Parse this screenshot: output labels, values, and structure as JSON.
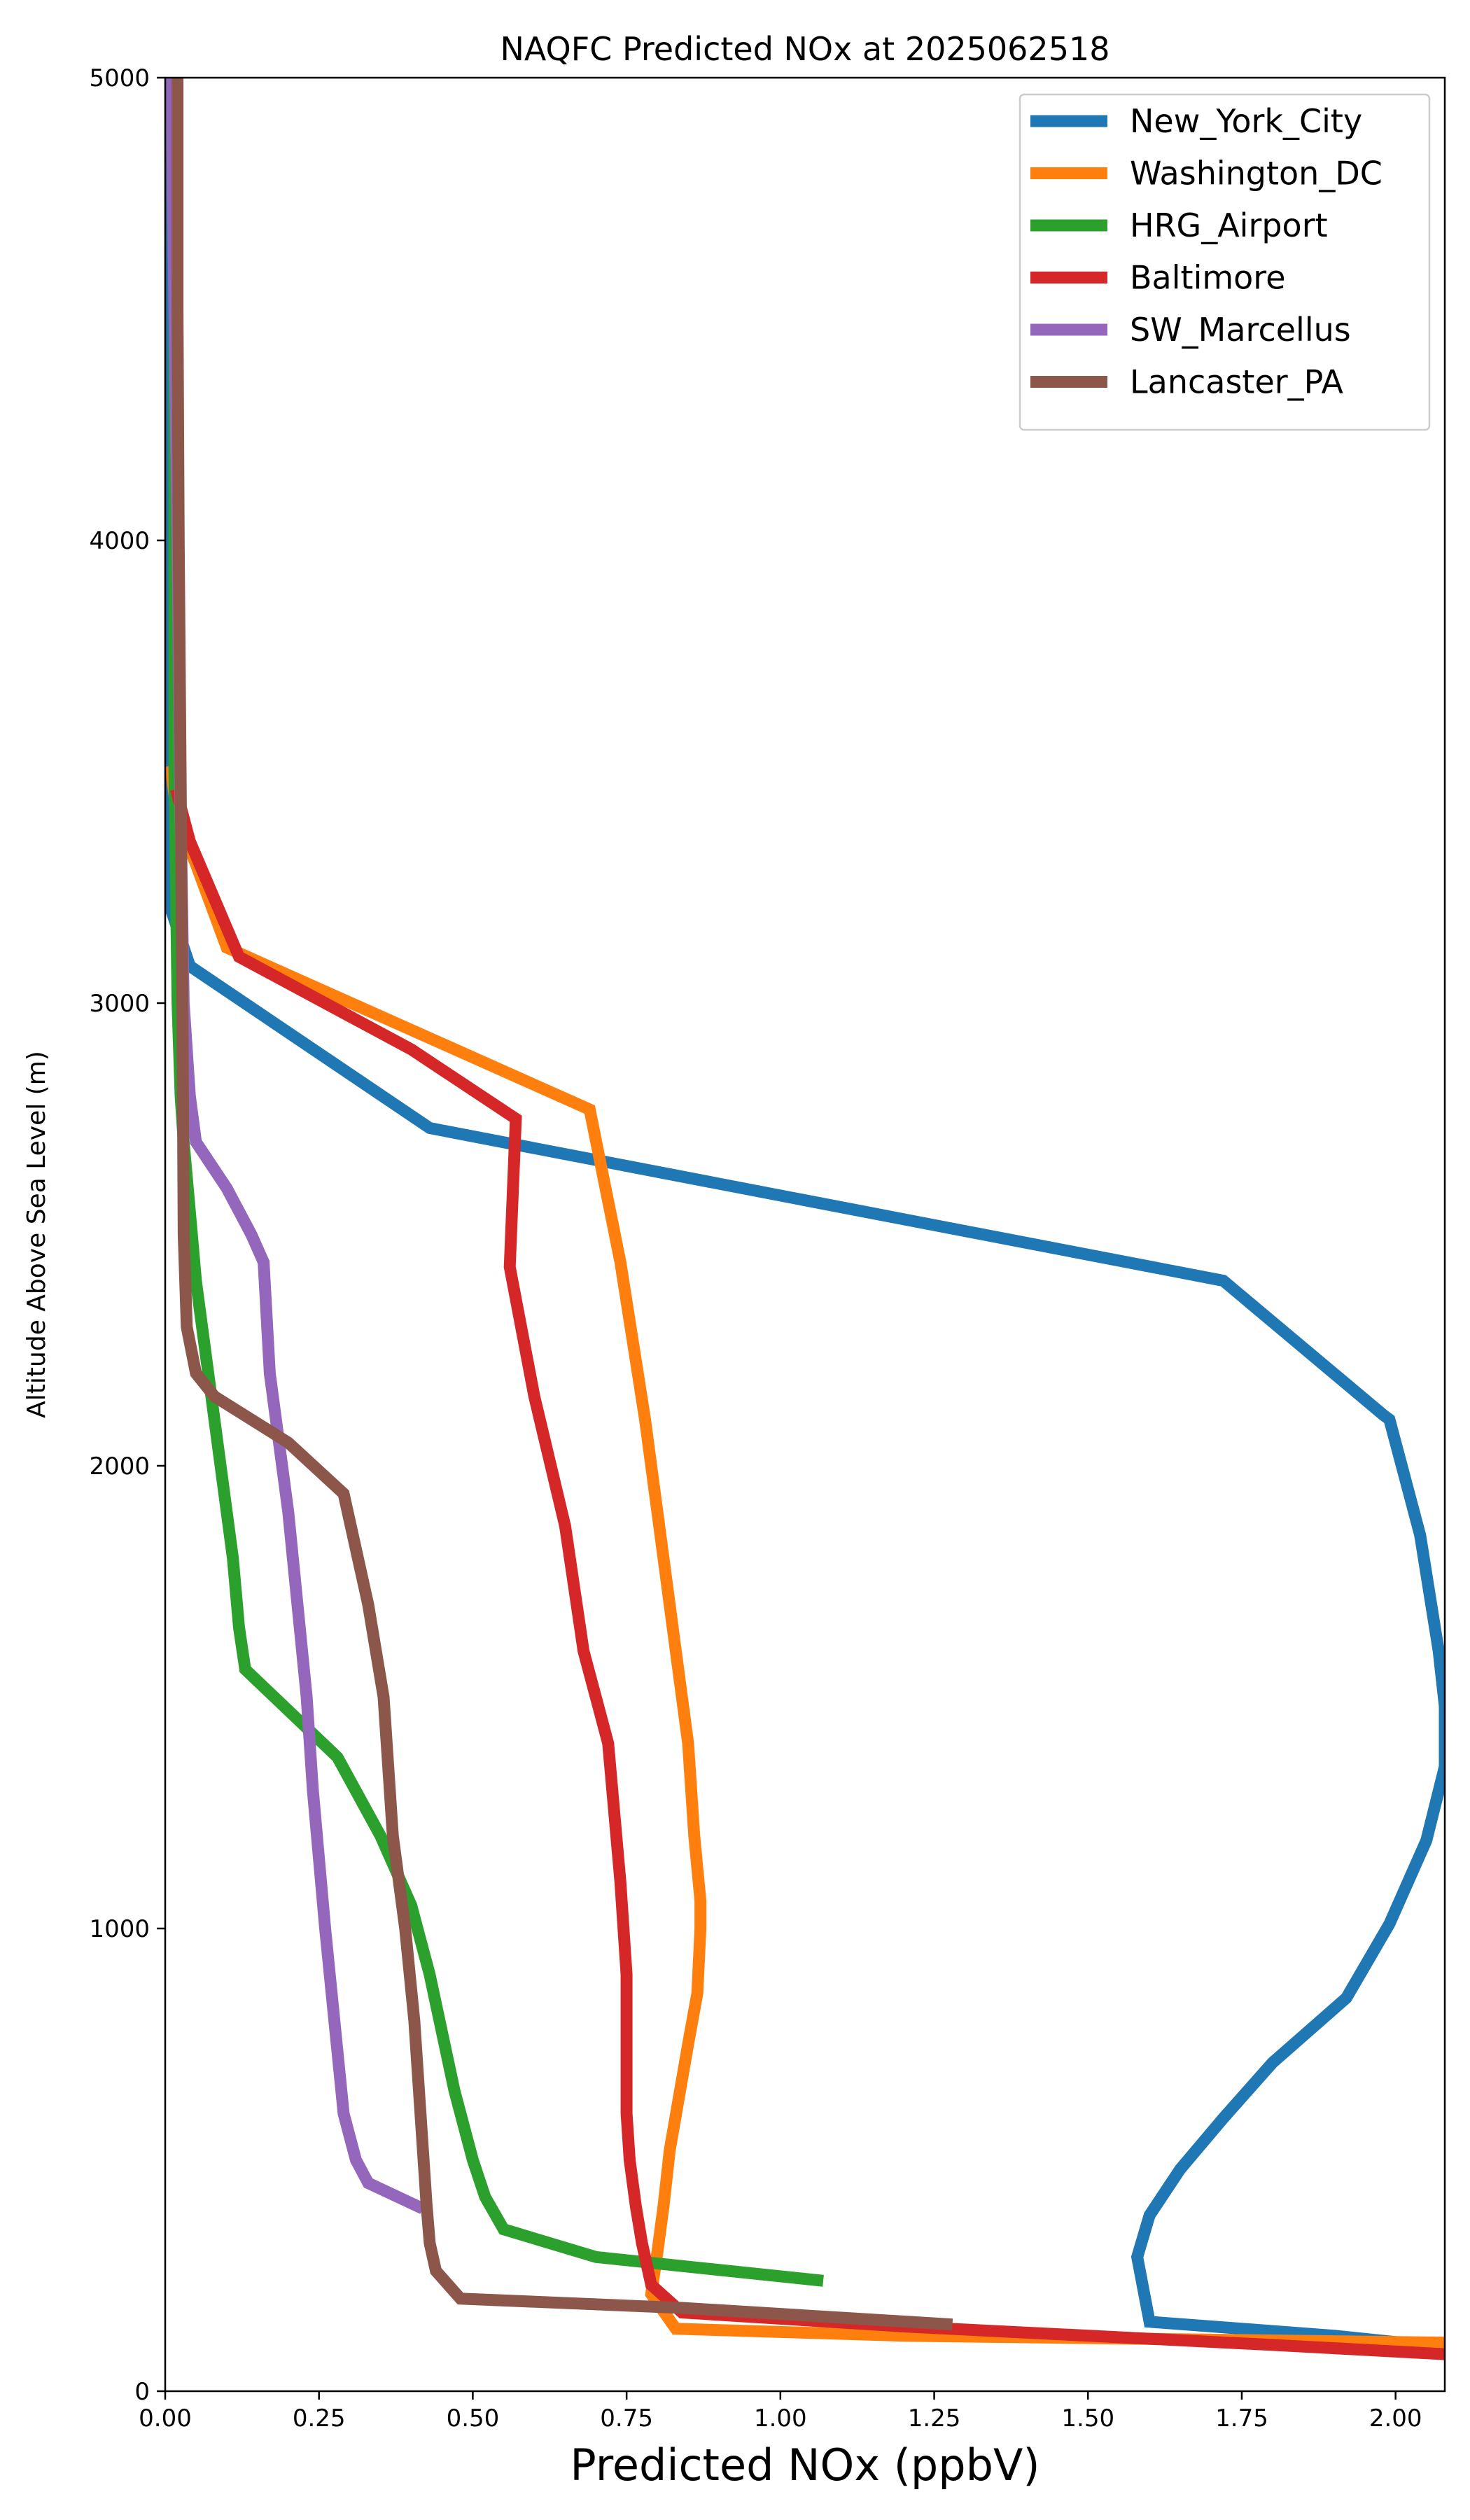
{
  "chart_data": {
    "type": "line",
    "title": "NAQFC Predicted NOx at 2025062518",
    "xlabel": "Predicted NOx (ppbV)",
    "ylabel": "Altitude Above Sea Level (m)",
    "xlim": [
      0,
      2.08
    ],
    "ylim": [
      0,
      5000
    ],
    "xticks": [
      0,
      0.25,
      0.5,
      0.75,
      1.0,
      1.25,
      1.5,
      1.75,
      2.0
    ],
    "xtick_labels": [
      "0.00",
      "0.25",
      "0.50",
      "0.75",
      "1.00",
      "1.25",
      "1.50",
      "1.75",
      "2.00"
    ],
    "yticks": [
      0,
      1000,
      2000,
      3000,
      4000,
      5000
    ],
    "ytick_labels": [
      "0",
      "1000",
      "2000",
      "3000",
      "4000",
      "5000"
    ],
    "grid": false,
    "legend_position": "top-right",
    "series": [
      {
        "name": "New_York_City",
        "color": "#1f77b4",
        "x": [
          2.08,
          1.9,
          1.6,
          1.59,
          1.58,
          1.6,
          1.65,
          1.72,
          1.8,
          1.92,
          1.99,
          2.05,
          2.08,
          2.08,
          2.07,
          2.04,
          2.01,
          1.99,
          1.98,
          1.72,
          0.43,
          0.04,
          0.01,
          0.005,
          0.005
        ],
        "y": [
          95,
          120,
          150,
          220,
          290,
          380,
          480,
          590,
          710,
          850,
          1010,
          1190,
          1350,
          1480,
          1600,
          1850,
          2000,
          2100,
          2110,
          2400,
          2730,
          3080,
          3200,
          4000,
          5000
        ]
      },
      {
        "name": "Washington_DC",
        "color": "#ff7f0e",
        "x": [
          2.08,
          1.2,
          0.83,
          0.79,
          0.8,
          0.81,
          0.82,
          0.85,
          0.865,
          0.87,
          0.87,
          0.86,
          0.85,
          0.83,
          0.81,
          0.78,
          0.74,
          0.69,
          0.1,
          0.05,
          0.02,
          0.01
        ],
        "y": [
          105,
          120,
          135,
          210,
          300,
          400,
          520,
          750,
          860,
          1000,
          1060,
          1200,
          1400,
          1600,
          1800,
          2100,
          2440,
          2770,
          3120,
          3300,
          3400,
          3500
        ]
      },
      {
        "name": "HRG_Airport",
        "color": "#2ca02c",
        "x": [
          1.06,
          0.7,
          0.55,
          0.52,
          0.5,
          0.47,
          0.43,
          0.4,
          0.35,
          0.28,
          0.13,
          0.12,
          0.11,
          0.1,
          0.09,
          0.07,
          0.05,
          0.04,
          0.03,
          0.025,
          0.02,
          0.015,
          0.015
        ],
        "y": [
          240,
          290,
          350,
          420,
          500,
          650,
          900,
          1050,
          1200,
          1370,
          1560,
          1650,
          1800,
          1900,
          2000,
          2200,
          2400,
          2550,
          2700,
          2800,
          3000,
          3500,
          5000
        ]
      },
      {
        "name": "Baltimore",
        "color": "#d62728",
        "x": [
          2.08,
          1.8,
          1.2,
          0.84,
          0.79,
          0.775,
          0.765,
          0.755,
          0.75,
          0.75,
          0.75,
          0.74,
          0.72,
          0.68,
          0.65,
          0.6,
          0.56,
          0.57,
          0.4,
          0.12,
          0.04,
          0.02
        ],
        "y": [
          80,
          100,
          140,
          170,
          230,
          320,
          400,
          500,
          600,
          760,
          900,
          1100,
          1400,
          1600,
          1870,
          2150,
          2430,
          2750,
          2900,
          3100,
          3350,
          3450
        ]
      },
      {
        "name": "SW_Marcellus",
        "color": "#9467bd",
        "x": [
          0.41,
          0.33,
          0.31,
          0.29,
          0.26,
          0.24,
          0.23,
          0.2,
          0.17,
          0.16,
          0.14,
          0.1,
          0.05,
          0.04,
          0.03,
          0.025,
          0.02,
          0.015,
          0.01
        ],
        "y": [
          400,
          450,
          500,
          600,
          1000,
          1300,
          1500,
          1900,
          2200,
          2440,
          2500,
          2600,
          2700,
          2800,
          3000,
          3400,
          4000,
          4500,
          5000
        ]
      },
      {
        "name": "Lancaster_PA",
        "color": "#8c564b",
        "x": [
          1.27,
          0.84,
          0.48,
          0.44,
          0.43,
          0.425,
          0.415,
          0.405,
          0.39,
          0.37,
          0.355,
          0.33,
          0.29,
          0.2,
          0.08,
          0.05,
          0.035,
          0.03,
          0.028,
          0.025,
          0.022,
          0.02,
          0.02
        ],
        "y": [
          145,
          180,
          200,
          260,
          320,
          400,
          600,
          800,
          1000,
          1200,
          1500,
          1700,
          1940,
          2050,
          2150,
          2200,
          2300,
          2500,
          3000,
          3500,
          4000,
          4500,
          5000
        ]
      }
    ]
  }
}
